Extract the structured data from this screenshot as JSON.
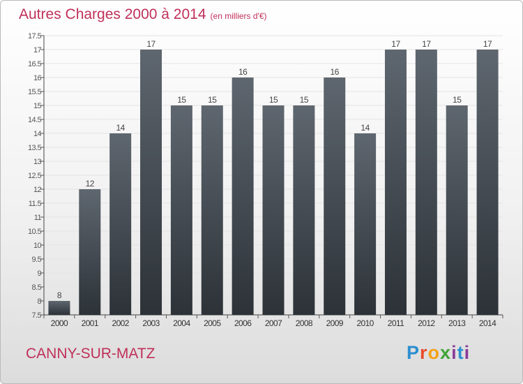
{
  "chart_data": {
    "type": "bar",
    "title": "Autres Charges 2000 à 2014",
    "subtitle": "(en milliers d'€)",
    "categories": [
      "2000",
      "2001",
      "2002",
      "2003",
      "2004",
      "2005",
      "2006",
      "2007",
      "2008",
      "2009",
      "2010",
      "2011",
      "2012",
      "2013",
      "2014"
    ],
    "values": [
      8,
      12,
      14,
      17,
      15,
      15,
      16,
      15,
      15,
      16,
      14,
      17,
      17,
      15,
      17
    ],
    "ylim": [
      7.5,
      17.5
    ],
    "yticks": [
      "7.5",
      "8",
      "8.5",
      "9",
      "9.5",
      "10",
      "10.5",
      "11",
      "11.5",
      "12",
      "12.5",
      "13",
      "13.5",
      "14",
      "14.5",
      "15",
      "15.5",
      "16",
      "16.5",
      "17",
      "17.5"
    ],
    "grid": true,
    "bar_color": "#474e56"
  },
  "footer": {
    "town": "CANNY-SUR-MATZ",
    "logo": [
      "P",
      "r",
      "o",
      "x",
      "i",
      "t",
      "i"
    ]
  }
}
